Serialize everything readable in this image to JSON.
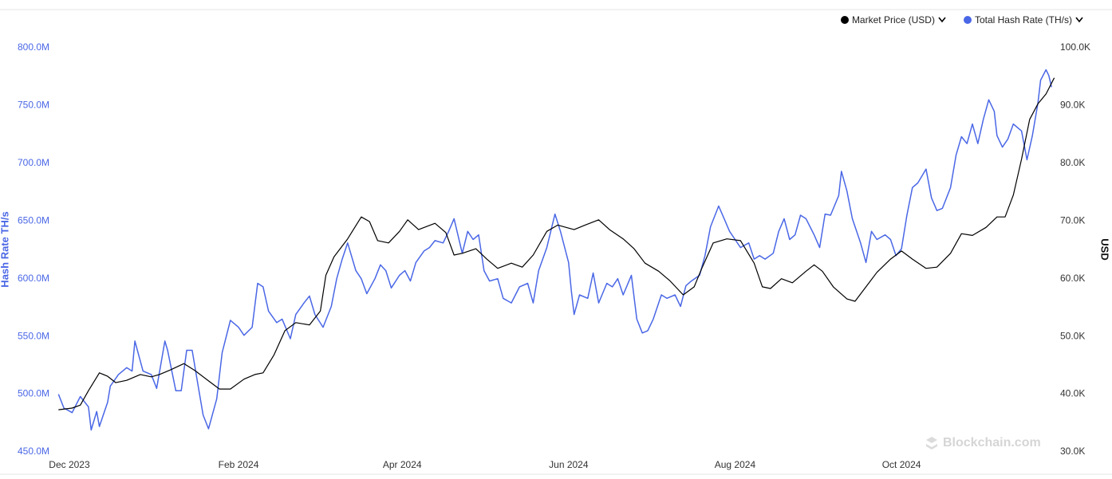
{
  "chart_data": {
    "type": "line",
    "legend_position": "top-right",
    "ylabel": "Hash Rate TH/s",
    "y2label": "USD",
    "watermark": "Blockchain.com",
    "xlim": [
      -4,
      361
    ],
    "xticks": [
      {
        "value": 0,
        "label": "Dec 2023"
      },
      {
        "value": 62,
        "label": "Feb 2024"
      },
      {
        "value": 122,
        "label": "Apr 2024"
      },
      {
        "value": 183,
        "label": "Jun 2024"
      },
      {
        "value": 244,
        "label": "Aug 2024"
      },
      {
        "value": 305,
        "label": "Oct 2024"
      }
    ],
    "ylim": [
      450000000,
      800000000
    ],
    "yticks": [
      {
        "value": 450000000,
        "label": "450.0M"
      },
      {
        "value": 500000000,
        "label": "500.0M"
      },
      {
        "value": 550000000,
        "label": "550.0M"
      },
      {
        "value": 600000000,
        "label": "600.0M"
      },
      {
        "value": 650000000,
        "label": "650.0M"
      },
      {
        "value": 700000000,
        "label": "700.0M"
      },
      {
        "value": 750000000,
        "label": "750.0M"
      },
      {
        "value": 800000000,
        "label": "800.0M"
      }
    ],
    "y2lim": [
      30000,
      100000
    ],
    "y2ticks": [
      {
        "value": 30000,
        "label": "30.0K"
      },
      {
        "value": 40000,
        "label": "40.0K"
      },
      {
        "value": 50000,
        "label": "50.0K"
      },
      {
        "value": 60000,
        "label": "60.0K"
      },
      {
        "value": 70000,
        "label": "70.0K"
      },
      {
        "value": 80000,
        "label": "80.0K"
      },
      {
        "value": 90000,
        "label": "90.0K"
      },
      {
        "value": 100000,
        "label": "100.0K"
      }
    ],
    "series": [
      {
        "name": "Market Price (USD)",
        "color": "#000000",
        "axis": "y2",
        "x": [
          -4,
          1,
          4,
          7,
          11,
          14,
          17,
          21,
          26,
          30,
          33,
          37,
          42,
          46,
          51,
          55,
          59,
          64,
          68,
          71,
          75,
          79,
          83,
          88,
          92,
          94,
          97,
          102,
          107,
          110,
          113,
          117,
          121,
          124,
          128,
          134,
          138,
          141,
          144,
          149,
          153,
          157,
          162,
          166,
          170,
          175,
          179,
          185,
          189,
          194,
          198,
          203,
          207,
          211,
          216,
          220,
          225,
          229,
          232,
          236,
          241,
          246,
          251,
          254,
          257,
          261,
          265,
          270,
          273,
          276,
          280,
          285,
          288,
          292,
          296,
          301,
          305,
          309,
          314,
          318,
          323,
          327,
          331,
          336,
          340,
          343,
          346,
          349,
          352,
          355,
          358,
          361
        ],
        "values": [
          37300,
          37600,
          38100,
          40600,
          43700,
          43100,
          42000,
          42400,
          43400,
          43000,
          43400,
          44200,
          45300,
          44100,
          42300,
          40900,
          40900,
          42600,
          43400,
          43700,
          46800,
          51000,
          52400,
          52000,
          54400,
          60600,
          63800,
          66900,
          70700,
          69900,
          66600,
          66200,
          68200,
          70200,
          68500,
          69600,
          68000,
          64100,
          64400,
          65200,
          63400,
          61800,
          62700,
          62000,
          64100,
          68200,
          69300,
          68500,
          69300,
          70200,
          68500,
          66900,
          65200,
          62700,
          61300,
          59700,
          57200,
          58600,
          62000,
          66200,
          66900,
          66600,
          62700,
          58600,
          58300,
          60000,
          59300,
          61300,
          62400,
          61300,
          58600,
          56500,
          56100,
          58600,
          61100,
          63400,
          64800,
          63400,
          61800,
          62000,
          64400,
          67800,
          67500,
          68900,
          70700,
          70700,
          74500,
          80700,
          87600,
          90300,
          92000,
          94800
        ]
      },
      {
        "name": "Total Hash Rate (TH/s)",
        "color": "#4a67e6",
        "x": [
          -4,
          -2,
          1,
          4,
          7,
          8,
          10,
          11,
          14,
          15,
          18,
          21,
          23,
          24,
          27,
          30,
          32,
          35,
          36,
          39,
          41,
          43,
          45,
          47,
          49,
          51,
          54,
          56,
          59,
          62,
          64,
          67,
          69,
          71,
          73,
          76,
          78,
          81,
          83,
          86,
          88,
          90,
          93,
          96,
          98,
          100,
          102,
          105,
          107,
          109,
          112,
          114,
          116,
          118,
          121,
          123,
          125,
          127,
          130,
          132,
          134,
          137,
          139,
          141,
          144,
          146,
          148,
          150,
          152,
          154,
          157,
          159,
          162,
          165,
          168,
          170,
          172,
          175,
          178,
          180,
          183,
          184,
          185,
          187,
          190,
          192,
          194,
          197,
          199,
          201,
          203,
          206,
          208,
          210,
          212,
          214,
          217,
          219,
          222,
          224,
          226,
          228,
          231,
          233,
          235,
          238,
          240,
          242,
          244,
          246,
          249,
          251,
          253,
          255,
          258,
          260,
          262,
          264,
          266,
          268,
          270,
          273,
          275,
          277,
          279,
          282,
          283,
          285,
          287,
          290,
          292,
          294,
          296,
          299,
          301,
          303,
          305,
          307,
          309,
          311,
          314,
          316,
          318,
          320,
          323,
          325,
          327,
          329,
          331,
          333,
          335,
          337,
          339,
          340,
          342,
          344,
          346,
          349,
          351,
          353,
          355,
          356,
          358,
          359,
          360
        ],
        "values": [
          500000000,
          488000000,
          484000000,
          498000000,
          489000000,
          469000000,
          485000000,
          472000000,
          493000000,
          507000000,
          517000000,
          523000000,
          520000000,
          546000000,
          520000000,
          517000000,
          505000000,
          546000000,
          538000000,
          503000000,
          503000000,
          538000000,
          538000000,
          510000000,
          482000000,
          470000000,
          496000000,
          536000000,
          564000000,
          558000000,
          551000000,
          558000000,
          596000000,
          593000000,
          572000000,
          562000000,
          565000000,
          548000000,
          569000000,
          579000000,
          585000000,
          569000000,
          558000000,
          576000000,
          600000000,
          617000000,
          631000000,
          607000000,
          600000000,
          587000000,
          600000000,
          612000000,
          607000000,
          592000000,
          603000000,
          607000000,
          598000000,
          614000000,
          624000000,
          627000000,
          633000000,
          631000000,
          641000000,
          652000000,
          622000000,
          641000000,
          634000000,
          638000000,
          607000000,
          598000000,
          600000000,
          583000000,
          579000000,
          593000000,
          596000000,
          579000000,
          607000000,
          627000000,
          656000000,
          641000000,
          614000000,
          589000000,
          569000000,
          586000000,
          583000000,
          605000000,
          579000000,
          596000000,
          593000000,
          600000000,
          586000000,
          603000000,
          565000000,
          553000000,
          555000000,
          565000000,
          586000000,
          583000000,
          586000000,
          576000000,
          594000000,
          598000000,
          603000000,
          620000000,
          645000000,
          663000000,
          652000000,
          641000000,
          634000000,
          627000000,
          631000000,
          617000000,
          620000000,
          617000000,
          622000000,
          641000000,
          652000000,
          634000000,
          638000000,
          655000000,
          652000000,
          638000000,
          627000000,
          656000000,
          655000000,
          672000000,
          693000000,
          676000000,
          652000000,
          631000000,
          614000000,
          641000000,
          634000000,
          638000000,
          634000000,
          620000000,
          626000000,
          655000000,
          679000000,
          683000000,
          695000000,
          670000000,
          659000000,
          661000000,
          679000000,
          707000000,
          723000000,
          717000000,
          734000000,
          717000000,
          738000000,
          755000000,
          745000000,
          724000000,
          714000000,
          721000000,
          734000000,
          728000000,
          703000000,
          724000000,
          752000000,
          772000000,
          781000000,
          776000000,
          766000000
        ]
      }
    ]
  }
}
